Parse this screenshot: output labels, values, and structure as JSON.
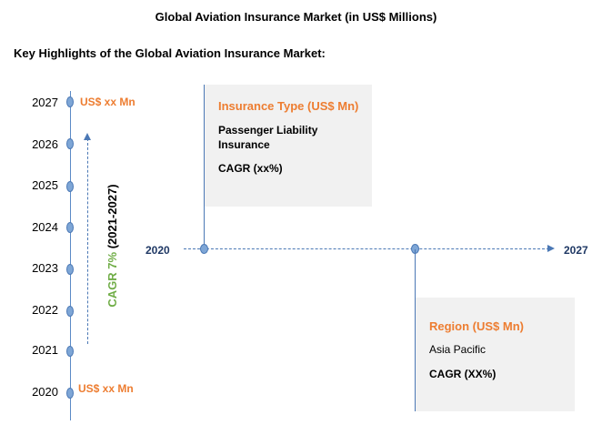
{
  "title": "Global Aviation Insurance Market (in US$ Millions)",
  "subtitle": "Key Highlights of the Global Aviation Insurance Market:",
  "timeline": {
    "years": [
      "2027",
      "2026",
      "2025",
      "2024",
      "2023",
      "2022",
      "2021",
      "2020"
    ],
    "top_value": "US$ xx Mn",
    "bottom_value": "US$ xx  Mn",
    "cagr_prefix": "CAGR 7%",
    "cagr_period": " (2021-2027)"
  },
  "horizontal_axis": {
    "start": "2020",
    "end": "2027"
  },
  "insurance_box": {
    "heading": "Insurance Type (US$ Mn)",
    "segment_line1": "Passenger Liability",
    "segment_line2": "Insurance",
    "cagr": "CAGR (xx%)"
  },
  "region_box": {
    "heading": "Region (US$ Mn)",
    "segment": "Asia Pacific",
    "cagr": "CAGR (XX%)"
  },
  "colors": {
    "accent": "#ed7d31",
    "line": "#4b78b5",
    "cagr": "#70ad47",
    "year_text": "#1f3864",
    "box_bg": "#f1f1f1"
  }
}
